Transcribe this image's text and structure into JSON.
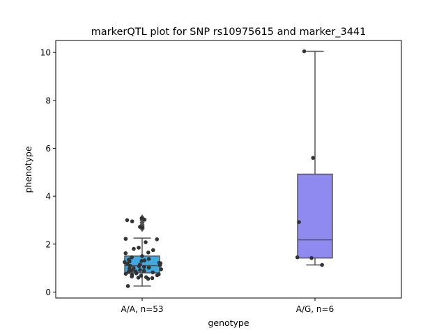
{
  "chart_data": {
    "type": "box",
    "title": "markerQTL plot for SNP rs10975615 and marker_3441",
    "xlabel": "genotype",
    "ylabel": "phenotype",
    "ylim": [
      -0.25,
      10.5
    ],
    "yticks": [
      0,
      2,
      4,
      6,
      8,
      10
    ],
    "grid": false,
    "categories": [
      "A/A, n=53",
      "A/G, n=6"
    ],
    "boxes": [
      {
        "category": "A/A, n=53",
        "color": "#3fa9e0",
        "q1": 0.8,
        "median": 1.1,
        "q3": 1.5,
        "whisker_low": 0.25,
        "whisker_high": 2.25,
        "fliers": [
          2.65,
          2.72,
          2.8,
          2.9,
          3.0,
          3.05,
          3.1
        ]
      },
      {
        "category": "A/G, n=6",
        "color": "#8f8af0",
        "q1": 1.42,
        "median": 2.18,
        "q3": 4.92,
        "whisker_low": 1.13,
        "whisker_high": 10.05,
        "fliers": []
      }
    ],
    "points": [
      {
        "category": "A/A, n=53",
        "values": [
          3.08,
          3.02,
          3.0,
          2.95,
          2.72,
          2.7,
          2.22,
          2.2,
          2.08,
          1.85,
          1.8,
          1.75,
          1.65,
          1.62,
          1.5,
          1.45,
          1.38,
          1.35,
          1.32,
          1.3,
          1.28,
          1.25,
          1.22,
          1.2,
          1.18,
          1.15,
          1.12,
          1.1,
          1.08,
          1.05,
          1.02,
          1.0,
          0.98,
          0.95,
          0.92,
          0.9,
          0.88,
          0.86,
          0.84,
          0.82,
          0.8,
          0.78,
          0.76,
          0.74,
          0.72,
          0.7,
          0.68,
          0.65,
          0.62,
          0.6,
          0.58,
          0.55,
          0.25
        ]
      },
      {
        "category": "A/G, n=6",
        "values": [
          10.05,
          5.6,
          2.92,
          1.45,
          1.42,
          1.13
        ]
      }
    ]
  }
}
